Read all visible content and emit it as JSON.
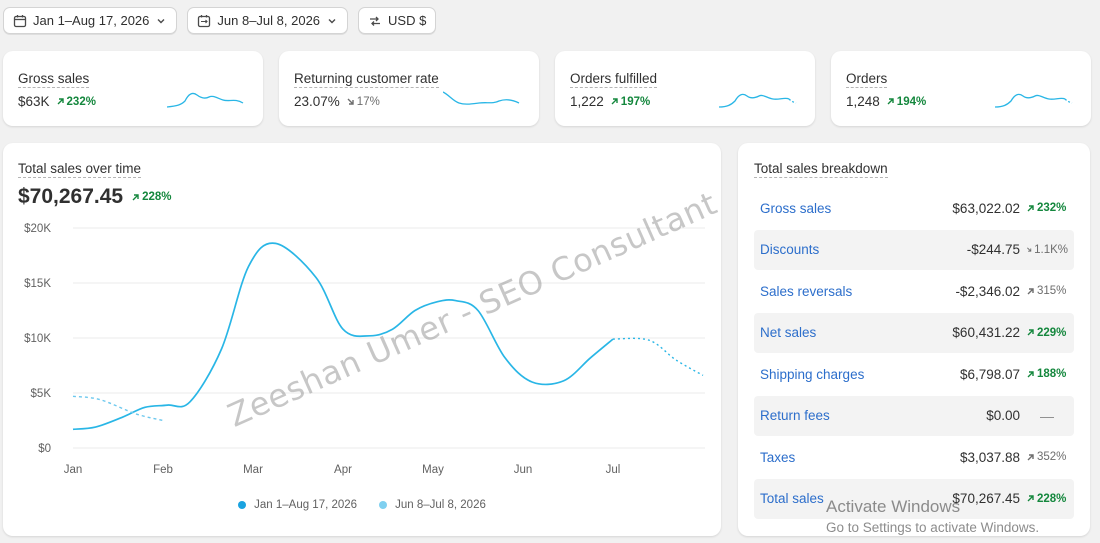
{
  "filters": {
    "date_range": "Jan 1–Aug 17, 2026",
    "compare_range": "Jun 8–Jul 8, 2026",
    "currency": "USD $"
  },
  "metrics": [
    {
      "title": "Gross sales",
      "value": "$63K",
      "delta": "232%",
      "trend": "up"
    },
    {
      "title": "Returning customer rate",
      "value": "23.07%",
      "delta": "17%",
      "trend": "down"
    },
    {
      "title": "Orders fulfilled",
      "value": "1,222",
      "delta": "197%",
      "trend": "up"
    },
    {
      "title": "Orders",
      "value": "1,248",
      "delta": "194%",
      "trend": "up"
    }
  ],
  "sales_chart": {
    "title": "Total sales over time",
    "total": "$70,267.45",
    "delta": "228%",
    "legend": [
      "Jan 1–Aug 17, 2026",
      "Jun 8–Jul 8, 2026"
    ]
  },
  "chart_data": {
    "type": "line",
    "title": "Total sales over time",
    "categories": [
      "Jan",
      "Feb",
      "Mar",
      "Apr",
      "May",
      "Jun",
      "Jul"
    ],
    "y_tick_labels": [
      "$0",
      "$5K",
      "$10K",
      "$15K",
      "$20K"
    ],
    "ylim": [
      0,
      20000
    ],
    "grid": true,
    "legend_position": "bottom",
    "series": [
      {
        "name": "Jan 1–Aug 17, 2026",
        "color": "#29b6e6",
        "x": [
          0,
          0.25,
          0.55,
          0.8,
          1.05,
          1.3,
          1.65,
          1.95,
          2.25,
          2.7,
          3.0,
          3.3,
          3.55,
          3.8,
          4.05,
          4.25,
          4.5,
          4.8,
          5.1,
          5.45,
          5.75,
          6.0,
          6.4,
          6.7,
          7.0
        ],
        "y": [
          1700,
          1900,
          2800,
          3700,
          3900,
          4200,
          9000,
          16500,
          18600,
          15500,
          10800,
          10200,
          10800,
          12500,
          13300,
          13400,
          12500,
          8200,
          6000,
          6100,
          8200,
          9900,
          9800,
          8000,
          6600
        ],
        "dashed_from_x": 6.0
      },
      {
        "name": "Jun 8–Jul 8, 2026",
        "color": "#29b6e6",
        "x": [
          0,
          0.3,
          0.7,
          1.0
        ],
        "y": [
          4700,
          4400,
          3100,
          2500
        ],
        "dashed": true
      }
    ]
  },
  "breakdown": {
    "title": "Total sales breakdown",
    "rows": [
      {
        "label": "Gross sales",
        "value": "$63,022.02",
        "delta": "232%",
        "trend": "up"
      },
      {
        "label": "Discounts",
        "value": "-$244.75",
        "delta": "1.1K%",
        "trend": "down"
      },
      {
        "label": "Sales reversals",
        "value": "-$2,346.02",
        "delta": "315%",
        "trend": "neutral-up"
      },
      {
        "label": "Net sales",
        "value": "$60,431.22",
        "delta": "229%",
        "trend": "up"
      },
      {
        "label": "Shipping charges",
        "value": "$6,798.07",
        "delta": "188%",
        "trend": "up"
      },
      {
        "label": "Return fees",
        "value": "$0.00",
        "delta": "—",
        "trend": "none"
      },
      {
        "label": "Taxes",
        "value": "$3,037.88",
        "delta": "352%",
        "trend": "neutral-up"
      },
      {
        "label": "Total sales",
        "value": "$70,267.45",
        "delta": "228%",
        "trend": "up"
      }
    ]
  },
  "watermark": "Zeeshan Umer - SEO Consultant",
  "os_overlay": {
    "title": "Activate Windows",
    "subtitle": "Go to Settings to activate Windows."
  },
  "colors": {
    "accent": "#29b6e6",
    "positive": "#14873d",
    "link": "#2c6ecb"
  }
}
